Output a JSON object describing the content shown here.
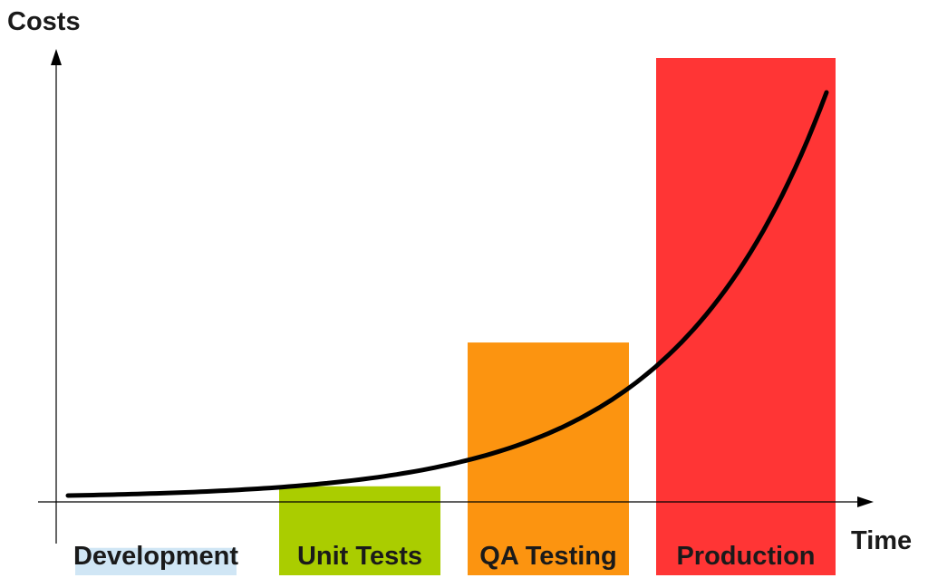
{
  "chart_data": {
    "type": "bar",
    "title": "",
    "ylabel": "Costs",
    "xlabel": "Time",
    "categories": [
      "Development",
      "Unit Tests",
      "QA Testing",
      "Production"
    ],
    "values": [
      5.3,
      17.2,
      45.0,
      100
    ],
    "ylim": [
      0,
      100
    ],
    "colors": [
      "#d0e6f5",
      "#aacd00",
      "#fc9410",
      "#ff3535"
    ],
    "grid": false,
    "legend": "none",
    "curve_color": "#000000",
    "curve_type": "exponential"
  }
}
